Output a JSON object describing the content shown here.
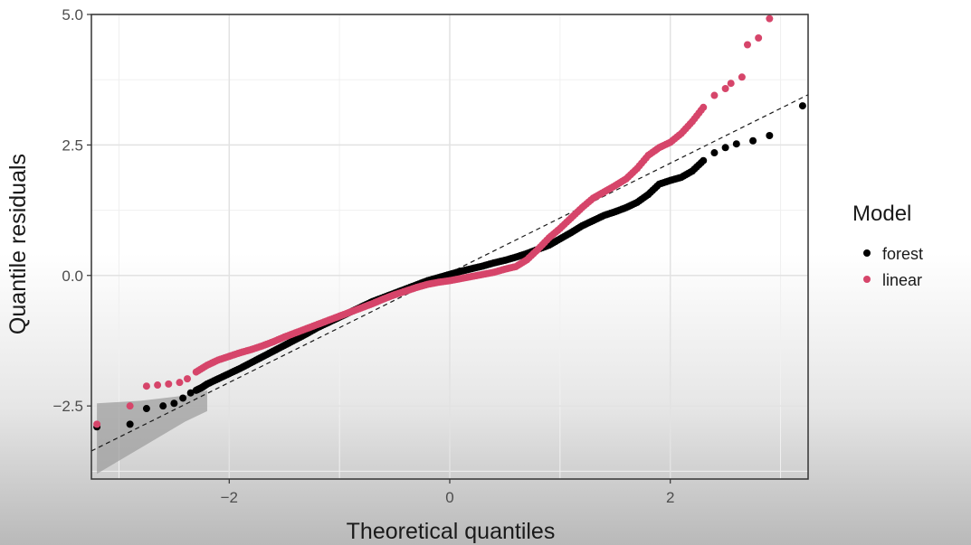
{
  "chart_data": {
    "type": "scatter",
    "title": "",
    "xlabel": "Theoretical quantiles",
    "ylabel": "Quantile residuals",
    "xlim": [
      -3.25,
      3.25
    ],
    "ylim": [
      -3.9,
      5.0
    ],
    "x_ticks": [
      -2,
      0,
      2
    ],
    "x_tick_labels": [
      "−2",
      "0",
      "2"
    ],
    "y_ticks": [
      -2.5,
      0.0,
      2.5,
      5.0
    ],
    "y_tick_labels": [
      "−2.5",
      "0.0",
      "2.5",
      "5.0"
    ],
    "grid": true,
    "legend": {
      "title": "Model",
      "position": "right",
      "entries": [
        {
          "label": "forest",
          "color": "#000000"
        },
        {
          "label": "linear",
          "color": "#d6456a"
        }
      ]
    },
    "reference_line": {
      "style": "dashed",
      "intercept": 0.05,
      "slope": 1.05
    },
    "confidence_band": {
      "x": [
        -3.2,
        -2.8,
        -2.4,
        -2.2
      ],
      "lower": [
        -3.8,
        -3.3,
        -2.8,
        -2.6
      ],
      "upper": [
        -2.45,
        -2.4,
        -2.3,
        -2.2
      ]
    },
    "series": [
      {
        "name": "forest",
        "color": "#000000",
        "points": [
          [
            -3.2,
            -2.9
          ],
          [
            -2.9,
            -2.85
          ],
          [
            -2.75,
            -2.55
          ],
          [
            -2.6,
            -2.5
          ],
          [
            -2.5,
            -2.45
          ],
          [
            -2.42,
            -2.35
          ],
          [
            -2.35,
            -2.25
          ],
          [
            -2.3,
            -2.2
          ],
          [
            -2.25,
            -2.15
          ],
          [
            -2.2,
            -2.08
          ],
          [
            -2.1,
            -1.98
          ],
          [
            -2.0,
            -1.88
          ],
          [
            -1.9,
            -1.78
          ],
          [
            -1.8,
            -1.67
          ],
          [
            -1.7,
            -1.56
          ],
          [
            -1.6,
            -1.45
          ],
          [
            -1.5,
            -1.34
          ],
          [
            -1.4,
            -1.23
          ],
          [
            -1.3,
            -1.12
          ],
          [
            -1.2,
            -1.0
          ],
          [
            -1.1,
            -0.9
          ],
          [
            -1.0,
            -0.8
          ],
          [
            -0.9,
            -0.7
          ],
          [
            -0.8,
            -0.6
          ],
          [
            -0.7,
            -0.5
          ],
          [
            -0.6,
            -0.42
          ],
          [
            -0.5,
            -0.34
          ],
          [
            -0.4,
            -0.26
          ],
          [
            -0.3,
            -0.18
          ],
          [
            -0.2,
            -0.1
          ],
          [
            -0.1,
            -0.04
          ],
          [
            0.0,
            0.02
          ],
          [
            0.1,
            0.08
          ],
          [
            0.2,
            0.13
          ],
          [
            0.3,
            0.18
          ],
          [
            0.4,
            0.24
          ],
          [
            0.5,
            0.29
          ],
          [
            0.6,
            0.35
          ],
          [
            0.7,
            0.42
          ],
          [
            0.8,
            0.5
          ],
          [
            0.9,
            0.58
          ],
          [
            1.0,
            0.7
          ],
          [
            1.1,
            0.82
          ],
          [
            1.2,
            0.95
          ],
          [
            1.3,
            1.05
          ],
          [
            1.4,
            1.15
          ],
          [
            1.5,
            1.22
          ],
          [
            1.6,
            1.3
          ],
          [
            1.7,
            1.4
          ],
          [
            1.8,
            1.55
          ],
          [
            1.9,
            1.75
          ],
          [
            2.0,
            1.82
          ],
          [
            2.1,
            1.88
          ],
          [
            2.2,
            2.0
          ],
          [
            2.3,
            2.2
          ],
          [
            2.4,
            2.35
          ],
          [
            2.5,
            2.45
          ],
          [
            2.6,
            2.52
          ],
          [
            2.75,
            2.58
          ],
          [
            2.9,
            2.68
          ],
          [
            3.2,
            3.25
          ]
        ]
      },
      {
        "name": "linear",
        "color": "#d6456a",
        "points": [
          [
            -3.2,
            -2.85
          ],
          [
            -2.9,
            -2.5
          ],
          [
            -2.75,
            -2.12
          ],
          [
            -2.65,
            -2.1
          ],
          [
            -2.55,
            -2.08
          ],
          [
            -2.45,
            -2.05
          ],
          [
            -2.38,
            -1.98
          ],
          [
            -2.3,
            -1.85
          ],
          [
            -2.2,
            -1.72
          ],
          [
            -2.1,
            -1.62
          ],
          [
            -2.0,
            -1.55
          ],
          [
            -1.9,
            -1.48
          ],
          [
            -1.8,
            -1.42
          ],
          [
            -1.7,
            -1.35
          ],
          [
            -1.6,
            -1.27
          ],
          [
            -1.5,
            -1.18
          ],
          [
            -1.4,
            -1.1
          ],
          [
            -1.3,
            -1.02
          ],
          [
            -1.2,
            -0.94
          ],
          [
            -1.1,
            -0.86
          ],
          [
            -1.0,
            -0.78
          ],
          [
            -0.9,
            -0.7
          ],
          [
            -0.8,
            -0.62
          ],
          [
            -0.7,
            -0.54
          ],
          [
            -0.6,
            -0.45
          ],
          [
            -0.5,
            -0.37
          ],
          [
            -0.4,
            -0.3
          ],
          [
            -0.3,
            -0.23
          ],
          [
            -0.2,
            -0.17
          ],
          [
            -0.1,
            -0.13
          ],
          [
            0.0,
            -0.1
          ],
          [
            0.1,
            -0.06
          ],
          [
            0.2,
            -0.02
          ],
          [
            0.3,
            0.02
          ],
          [
            0.4,
            0.06
          ],
          [
            0.5,
            0.12
          ],
          [
            0.6,
            0.17
          ],
          [
            0.7,
            0.3
          ],
          [
            0.8,
            0.5
          ],
          [
            0.9,
            0.72
          ],
          [
            1.0,
            0.9
          ],
          [
            1.1,
            1.1
          ],
          [
            1.2,
            1.3
          ],
          [
            1.3,
            1.48
          ],
          [
            1.4,
            1.6
          ],
          [
            1.5,
            1.72
          ],
          [
            1.6,
            1.85
          ],
          [
            1.7,
            2.05
          ],
          [
            1.8,
            2.3
          ],
          [
            1.9,
            2.45
          ],
          [
            2.0,
            2.55
          ],
          [
            2.1,
            2.72
          ],
          [
            2.2,
            2.95
          ],
          [
            2.3,
            3.22
          ],
          [
            2.4,
            3.45
          ],
          [
            2.5,
            3.58
          ],
          [
            2.55,
            3.68
          ],
          [
            2.65,
            3.8
          ],
          [
            2.7,
            4.42
          ],
          [
            2.8,
            4.55
          ],
          [
            2.9,
            4.92
          ]
        ]
      }
    ]
  }
}
